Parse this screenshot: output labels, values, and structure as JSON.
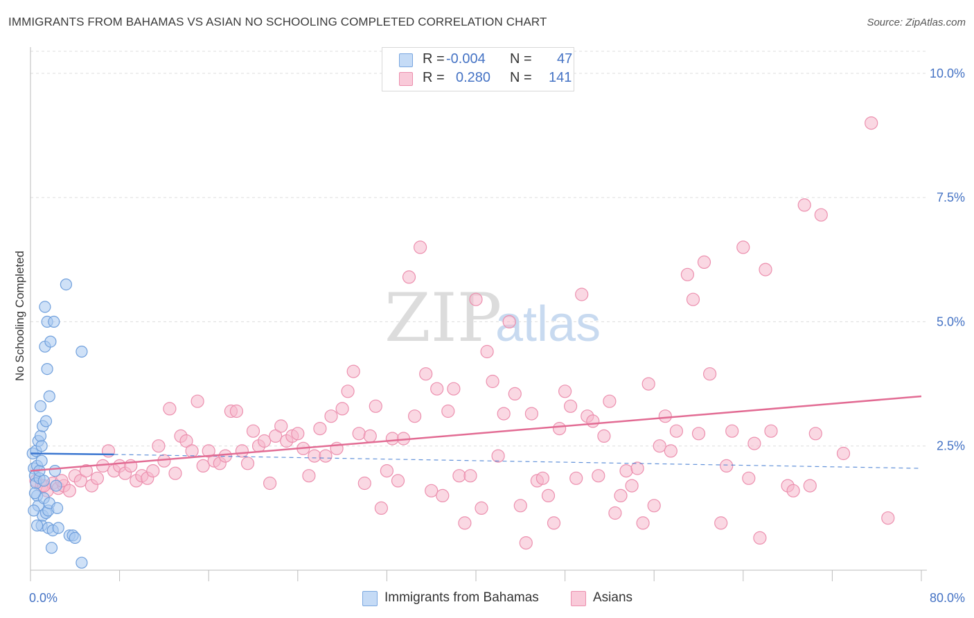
{
  "header": {
    "title": "IMMIGRANTS FROM BAHAMAS VS ASIAN NO SCHOOLING COMPLETED CORRELATION CHART",
    "source": "Source: ZipAtlas.com"
  },
  "watermark": {
    "zip": "ZIP",
    "atlas": "atlas"
  },
  "legend": {
    "rows": [
      {
        "r_label": "R =",
        "r_value": "-0.004",
        "n_label": "N =",
        "n_value": "47"
      },
      {
        "r_label": "R =",
        "r_value": "0.280",
        "n_label": "N =",
        "n_value": "141"
      }
    ]
  },
  "colors": {
    "blue_fill": "#a8c8f0",
    "blue_stroke": "#6f9fdc",
    "blue_line": "#3a76d0",
    "pink_fill": "#f6b8cc",
    "pink_stroke": "#ec8fae",
    "pink_line": "#e26b93",
    "axis_label": "#4472c4",
    "grid": "#dddddd"
  },
  "chart_data": {
    "type": "scatter",
    "title": "IMMIGRANTS FROM BAHAMAS VS ASIAN NO SCHOOLING COMPLETED CORRELATION CHART",
    "xlabel": "",
    "ylabel": "No Schooling Completed",
    "xlim": [
      0,
      80
    ],
    "ylim": [
      0,
      10.5
    ],
    "x_tick_labels": [
      {
        "value": 0,
        "label": "0.0%"
      },
      {
        "value": 80,
        "label": "80.0%"
      }
    ],
    "y_tick_labels": [
      {
        "value": 2.5,
        "label": "2.5%"
      },
      {
        "value": 5.0,
        "label": "5.0%"
      },
      {
        "value": 7.5,
        "label": "7.5%"
      },
      {
        "value": 10.0,
        "label": "10.0%"
      }
    ],
    "x_minor_ticks": [
      0,
      8,
      16,
      24,
      32,
      40,
      48,
      56,
      64,
      72,
      80
    ],
    "grid": true,
    "series": [
      {
        "name": "Immigrants from Bahamas",
        "color": "#a8c8f0",
        "trend": {
          "x0": 0,
          "y0": 2.35,
          "x1": 7.5,
          "y1": 2.33,
          "dashed_to": 80,
          "dashed_y": 2.05
        },
        "points": [
          [
            0.2,
            2.35
          ],
          [
            0.3,
            2.05
          ],
          [
            0.4,
            1.9
          ],
          [
            0.5,
            1.75
          ],
          [
            0.5,
            2.4
          ],
          [
            0.6,
            1.5
          ],
          [
            0.6,
            2.1
          ],
          [
            0.7,
            1.3
          ],
          [
            0.7,
            2.6
          ],
          [
            0.8,
            1.85
          ],
          [
            0.9,
            2.7
          ],
          [
            0.9,
            3.3
          ],
          [
            1.0,
            0.9
          ],
          [
            1.0,
            2.5
          ],
          [
            1.1,
            1.1
          ],
          [
            1.1,
            2.9
          ],
          [
            1.2,
            1.8
          ],
          [
            1.2,
            1.45
          ],
          [
            1.3,
            5.3
          ],
          [
            1.3,
            4.5
          ],
          [
            1.4,
            1.15
          ],
          [
            1.4,
            3.0
          ],
          [
            1.5,
            4.05
          ],
          [
            1.5,
            5.0
          ],
          [
            1.6,
            0.85
          ],
          [
            1.6,
            1.2
          ],
          [
            1.7,
            3.5
          ],
          [
            1.7,
            1.35
          ],
          [
            1.8,
            4.6
          ],
          [
            1.9,
            0.45
          ],
          [
            2.0,
            0.8
          ],
          [
            2.1,
            5.0
          ],
          [
            2.2,
            2.0
          ],
          [
            2.3,
            1.7
          ],
          [
            2.4,
            1.25
          ],
          [
            2.5,
            0.85
          ],
          [
            3.2,
            5.75
          ],
          [
            3.5,
            0.7
          ],
          [
            3.8,
            0.7
          ],
          [
            4.0,
            0.65
          ],
          [
            4.6,
            4.4
          ],
          [
            4.6,
            0.15
          ],
          [
            0.4,
            1.55
          ],
          [
            0.8,
            2.0
          ],
          [
            1.0,
            2.2
          ],
          [
            0.3,
            1.2
          ],
          [
            0.6,
            0.9
          ]
        ]
      },
      {
        "name": "Asians",
        "color": "#f6b8cc",
        "trend": {
          "x0": 0,
          "y0": 2.0,
          "x1": 80,
          "y1": 3.5
        },
        "points": [
          [
            0.5,
            1.8
          ],
          [
            1.0,
            1.7
          ],
          [
            1.5,
            1.6
          ],
          [
            2.0,
            1.75
          ],
          [
            2.5,
            1.65
          ],
          [
            3.0,
            1.7
          ],
          [
            3.5,
            1.6
          ],
          [
            4.0,
            1.9
          ],
          [
            4.5,
            1.8
          ],
          [
            5.0,
            2.0
          ],
          [
            5.5,
            1.7
          ],
          [
            6.0,
            1.85
          ],
          [
            6.5,
            2.1
          ],
          [
            7.0,
            2.4
          ],
          [
            7.5,
            2.0
          ],
          [
            8.0,
            2.1
          ],
          [
            8.5,
            1.95
          ],
          [
            9.0,
            2.1
          ],
          [
            9.5,
            1.8
          ],
          [
            10.0,
            1.9
          ],
          [
            10.5,
            1.85
          ],
          [
            11.0,
            2.0
          ],
          [
            11.5,
            2.5
          ],
          [
            12.0,
            2.2
          ],
          [
            12.5,
            3.25
          ],
          [
            13.0,
            1.95
          ],
          [
            13.5,
            2.7
          ],
          [
            14.0,
            2.6
          ],
          [
            14.5,
            2.4
          ],
          [
            15.0,
            3.4
          ],
          [
            15.5,
            2.1
          ],
          [
            16.0,
            2.4
          ],
          [
            16.5,
            2.2
          ],
          [
            17.0,
            2.15
          ],
          [
            17.5,
            2.3
          ],
          [
            18.0,
            3.2
          ],
          [
            18.5,
            3.2
          ],
          [
            19.0,
            2.4
          ],
          [
            19.5,
            2.15
          ],
          [
            20.0,
            2.8
          ],
          [
            20.5,
            2.5
          ],
          [
            21.0,
            2.6
          ],
          [
            21.5,
            1.75
          ],
          [
            22.0,
            2.7
          ],
          [
            22.5,
            2.9
          ],
          [
            23.0,
            2.6
          ],
          [
            23.5,
            2.7
          ],
          [
            24.0,
            2.75
          ],
          [
            24.5,
            2.45
          ],
          [
            25.0,
            1.9
          ],
          [
            25.5,
            2.3
          ],
          [
            26.0,
            2.85
          ],
          [
            26.5,
            2.3
          ],
          [
            27.0,
            3.1
          ],
          [
            27.5,
            2.45
          ],
          [
            28.0,
            3.25
          ],
          [
            28.5,
            3.6
          ],
          [
            29.0,
            4.0
          ],
          [
            29.5,
            2.75
          ],
          [
            30.0,
            1.75
          ],
          [
            30.5,
            2.7
          ],
          [
            31.0,
            3.3
          ],
          [
            31.5,
            1.25
          ],
          [
            32.0,
            2.0
          ],
          [
            32.5,
            2.65
          ],
          [
            33.0,
            1.8
          ],
          [
            33.5,
            2.65
          ],
          [
            34.0,
            5.9
          ],
          [
            34.5,
            3.1
          ],
          [
            35.0,
            6.5
          ],
          [
            35.5,
            3.95
          ],
          [
            36.0,
            1.6
          ],
          [
            36.5,
            3.65
          ],
          [
            37.0,
            1.5
          ],
          [
            37.5,
            3.2
          ],
          [
            38.0,
            3.65
          ],
          [
            38.5,
            1.9
          ],
          [
            39.0,
            0.95
          ],
          [
            39.5,
            1.9
          ],
          [
            40.0,
            5.45
          ],
          [
            40.5,
            1.25
          ],
          [
            41.0,
            4.4
          ],
          [
            41.5,
            3.8
          ],
          [
            42.0,
            2.3
          ],
          [
            42.5,
            3.15
          ],
          [
            43.0,
            5.0
          ],
          [
            43.5,
            3.55
          ],
          [
            44.0,
            1.3
          ],
          [
            44.5,
            0.55
          ],
          [
            45.0,
            3.15
          ],
          [
            45.5,
            1.8
          ],
          [
            46.0,
            1.85
          ],
          [
            46.5,
            1.5
          ],
          [
            47.0,
            0.95
          ],
          [
            47.5,
            2.85
          ],
          [
            48.0,
            3.6
          ],
          [
            48.5,
            3.3
          ],
          [
            49.0,
            1.85
          ],
          [
            49.5,
            5.55
          ],
          [
            50.0,
            3.1
          ],
          [
            50.5,
            3.0
          ],
          [
            51.0,
            1.9
          ],
          [
            51.5,
            2.7
          ],
          [
            52.0,
            3.4
          ],
          [
            52.5,
            1.15
          ],
          [
            53.0,
            1.5
          ],
          [
            53.5,
            2.0
          ],
          [
            54.0,
            1.7
          ],
          [
            54.5,
            2.05
          ],
          [
            55.0,
            0.95
          ],
          [
            55.5,
            3.75
          ],
          [
            56.0,
            1.3
          ],
          [
            56.5,
            2.5
          ],
          [
            57.0,
            3.1
          ],
          [
            57.5,
            2.4
          ],
          [
            58.0,
            2.8
          ],
          [
            59.0,
            5.95
          ],
          [
            59.5,
            5.45
          ],
          [
            60.0,
            2.75
          ],
          [
            60.5,
            6.2
          ],
          [
            61.0,
            3.95
          ],
          [
            62.0,
            0.95
          ],
          [
            62.5,
            2.1
          ],
          [
            63.0,
            2.8
          ],
          [
            64.0,
            6.5
          ],
          [
            64.5,
            1.85
          ],
          [
            65.0,
            2.55
          ],
          [
            65.5,
            0.65
          ],
          [
            66.0,
            6.05
          ],
          [
            66.5,
            2.8
          ],
          [
            68.0,
            1.7
          ],
          [
            68.5,
            1.6
          ],
          [
            69.5,
            7.35
          ],
          [
            70.0,
            1.7
          ],
          [
            70.5,
            2.75
          ],
          [
            71.0,
            7.15
          ],
          [
            73.0,
            2.35
          ],
          [
            75.5,
            9.0
          ],
          [
            77.0,
            1.05
          ],
          [
            1.2,
            1.7
          ],
          [
            2.8,
            1.8
          ]
        ]
      }
    ],
    "legend_position": "top-center"
  },
  "bottom_legend": [
    {
      "label": "Immigrants from Bahamas"
    },
    {
      "label": "Asians"
    }
  ]
}
